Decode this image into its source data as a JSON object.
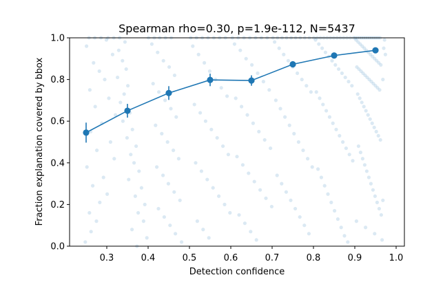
{
  "chart_data": {
    "type": "scatter",
    "title": "Spearman rho=0.30, p=1.9e-112, N=5437",
    "xlabel": "Detection confidence",
    "ylabel": "Fraction explanation covered by bbox",
    "xlim": [
      0.21,
      1.02
    ],
    "ylim": [
      0.0,
      1.0
    ],
    "x_ticks": [
      {
        "value": 0.3,
        "label": "0.3"
      },
      {
        "value": 0.4,
        "label": "0.4"
      },
      {
        "value": 0.5,
        "label": "0.5"
      },
      {
        "value": 0.6,
        "label": "0.6"
      },
      {
        "value": 0.7,
        "label": "0.7"
      },
      {
        "value": 0.8,
        "label": "0.8"
      },
      {
        "value": 0.9,
        "label": "0.9"
      },
      {
        "value": 1.0,
        "label": "1.0"
      }
    ],
    "y_ticks": [
      {
        "value": 0.0,
        "label": "0.0"
      },
      {
        "value": 0.2,
        "label": "0.2"
      },
      {
        "value": 0.4,
        "label": "0.4"
      },
      {
        "value": 0.6,
        "label": "0.6"
      },
      {
        "value": 0.8,
        "label": "0.8"
      },
      {
        "value": 1.0,
        "label": "1.0"
      }
    ],
    "grid": false,
    "colors": {
      "points": "#1f77b4",
      "binned_line": "#1f77b4"
    },
    "series": [
      {
        "kind": "binned_mean",
        "x": [
          0.25,
          0.35,
          0.45,
          0.55,
          0.65,
          0.75,
          0.85,
          0.95
        ],
        "y": [
          0.545,
          0.65,
          0.735,
          0.798,
          0.795,
          0.873,
          0.915,
          0.94
        ],
        "yerr": [
          0.048,
          0.033,
          0.033,
          0.03,
          0.025,
          0.015,
          0.012,
          0.01
        ]
      }
    ],
    "scatter_points": [
      [
        0.248,
        0.02
      ],
      [
        0.262,
        0.07
      ],
      [
        0.275,
        0.12
      ],
      [
        0.258,
        0.16
      ],
      [
        0.283,
        0.21
      ],
      [
        0.301,
        0.25
      ],
      [
        0.266,
        0.29
      ],
      [
        0.292,
        0.33
      ],
      [
        0.252,
        0.38
      ],
      [
        0.318,
        0.42
      ],
      [
        0.276,
        0.46
      ],
      [
        0.309,
        0.5
      ],
      [
        0.261,
        0.55
      ],
      [
        0.288,
        0.59
      ],
      [
        0.321,
        0.63
      ],
      [
        0.272,
        0.67
      ],
      [
        0.305,
        0.71
      ],
      [
        0.259,
        0.75
      ],
      [
        0.295,
        0.8
      ],
      [
        0.282,
        0.84
      ],
      [
        0.268,
        0.88
      ],
      [
        0.314,
        0.92
      ],
      [
        0.251,
        0.96
      ],
      [
        0.299,
        0.99
      ],
      [
        0.257,
        1.0
      ],
      [
        0.271,
        1.0
      ],
      [
        0.286,
        1.0
      ],
      [
        0.303,
        1.0
      ],
      [
        0.317,
        1.0
      ],
      [
        0.331,
        1.0
      ],
      [
        0.344,
        0.98
      ],
      [
        0.329,
        0.94
      ],
      [
        0.338,
        0.89
      ],
      [
        0.347,
        0.85
      ],
      [
        0.326,
        0.81
      ],
      [
        0.351,
        0.77
      ],
      [
        0.342,
        0.73
      ],
      [
        0.333,
        0.69
      ],
      [
        0.356,
        0.64
      ],
      [
        0.339,
        0.6
      ],
      [
        0.362,
        0.56
      ],
      [
        0.349,
        0.52
      ],
      [
        0.371,
        0.48
      ],
      [
        0.358,
        0.44
      ],
      [
        0.366,
        0.4
      ],
      [
        0.378,
        0.36
      ],
      [
        0.353,
        0.32
      ],
      [
        0.384,
        0.28
      ],
      [
        0.369,
        0.24
      ],
      [
        0.392,
        0.2
      ],
      [
        0.376,
        0.16
      ],
      [
        0.389,
        0.12
      ],
      [
        0.361,
        0.08
      ],
      [
        0.397,
        0.04
      ],
      [
        0.373,
        0.0
      ],
      [
        0.401,
        1.0
      ],
      [
        0.415,
        1.0
      ],
      [
        0.428,
        1.0
      ],
      [
        0.442,
        1.0
      ],
      [
        0.456,
        1.0
      ],
      [
        0.409,
        0.97
      ],
      [
        0.423,
        0.93
      ],
      [
        0.437,
        0.89
      ],
      [
        0.451,
        0.86
      ],
      [
        0.464,
        0.82
      ],
      [
        0.412,
        0.78
      ],
      [
        0.426,
        0.74
      ],
      [
        0.441,
        0.7
      ],
      [
        0.455,
        0.66
      ],
      [
        0.468,
        0.62
      ],
      [
        0.418,
        0.58
      ],
      [
        0.433,
        0.54
      ],
      [
        0.447,
        0.5
      ],
      [
        0.461,
        0.46
      ],
      [
        0.474,
        0.42
      ],
      [
        0.421,
        0.38
      ],
      [
        0.436,
        0.34
      ],
      [
        0.449,
        0.3
      ],
      [
        0.463,
        0.26
      ],
      [
        0.477,
        0.22
      ],
      [
        0.425,
        0.18
      ],
      [
        0.439,
        0.14
      ],
      [
        0.453,
        0.1
      ],
      [
        0.466,
        0.06
      ],
      [
        0.481,
        0.02
      ],
      [
        0.503,
        1.0
      ],
      [
        0.517,
        1.0
      ],
      [
        0.531,
        1.0
      ],
      [
        0.545,
        1.0
      ],
      [
        0.559,
        1.0
      ],
      [
        0.573,
        1.0
      ],
      [
        0.587,
        1.0
      ],
      [
        0.508,
        0.96
      ],
      [
        0.522,
        0.92
      ],
      [
        0.536,
        0.88
      ],
      [
        0.549,
        0.84
      ],
      [
        0.563,
        0.8
      ],
      [
        0.577,
        0.76
      ],
      [
        0.591,
        0.72
      ],
      [
        0.512,
        0.68
      ],
      [
        0.526,
        0.64
      ],
      [
        0.539,
        0.6
      ],
      [
        0.553,
        0.56
      ],
      [
        0.567,
        0.52
      ],
      [
        0.581,
        0.48
      ],
      [
        0.594,
        0.44
      ],
      [
        0.515,
        0.4
      ],
      [
        0.529,
        0.36
      ],
      [
        0.543,
        0.32
      ],
      [
        0.557,
        0.28
      ],
      [
        0.571,
        0.24
      ],
      [
        0.585,
        0.2
      ],
      [
        0.598,
        0.16
      ],
      [
        0.519,
        0.12
      ],
      [
        0.533,
        0.08
      ],
      [
        0.547,
        0.04
      ],
      [
        0.604,
        1.0
      ],
      [
        0.618,
        1.0
      ],
      [
        0.632,
        1.0
      ],
      [
        0.646,
        1.0
      ],
      [
        0.66,
        1.0
      ],
      [
        0.674,
        1.0
      ],
      [
        0.688,
        1.0
      ],
      [
        0.609,
        0.97
      ],
      [
        0.623,
        0.94
      ],
      [
        0.637,
        0.9
      ],
      [
        0.651,
        0.87
      ],
      [
        0.665,
        0.83
      ],
      [
        0.679,
        0.79
      ],
      [
        0.693,
        0.75
      ],
      [
        0.612,
        0.71
      ],
      [
        0.626,
        0.67
      ],
      [
        0.64,
        0.63
      ],
      [
        0.654,
        0.59
      ],
      [
        0.668,
        0.55
      ],
      [
        0.682,
        0.51
      ],
      [
        0.696,
        0.47
      ],
      [
        0.615,
        0.43
      ],
      [
        0.629,
        0.39
      ],
      [
        0.643,
        0.35
      ],
      [
        0.657,
        0.31
      ],
      [
        0.671,
        0.27
      ],
      [
        0.685,
        0.23
      ],
      [
        0.699,
        0.19
      ],
      [
        0.62,
        0.15
      ],
      [
        0.634,
        0.11
      ],
      [
        0.648,
        0.07
      ],
      [
        0.662,
        0.03
      ],
      [
        0.702,
        1.0
      ],
      [
        0.713,
        1.0
      ],
      [
        0.724,
        1.0
      ],
      [
        0.735,
        1.0
      ],
      [
        0.746,
        1.0
      ],
      [
        0.757,
        1.0
      ],
      [
        0.768,
        1.0
      ],
      [
        0.779,
        1.0
      ],
      [
        0.79,
        1.0
      ],
      [
        0.706,
        0.98
      ],
      [
        0.717,
        0.95
      ],
      [
        0.728,
        0.92
      ],
      [
        0.739,
        0.89
      ],
      [
        0.75,
        0.86
      ],
      [
        0.761,
        0.83
      ],
      [
        0.772,
        0.8
      ],
      [
        0.783,
        0.77
      ],
      [
        0.794,
        0.74
      ],
      [
        0.709,
        0.7
      ],
      [
        0.72,
        0.66
      ],
      [
        0.731,
        0.62
      ],
      [
        0.742,
        0.58
      ],
      [
        0.753,
        0.54
      ],
      [
        0.764,
        0.5
      ],
      [
        0.775,
        0.46
      ],
      [
        0.786,
        0.42
      ],
      [
        0.797,
        0.38
      ],
      [
        0.712,
        0.34
      ],
      [
        0.723,
        0.3
      ],
      [
        0.734,
        0.26
      ],
      [
        0.745,
        0.22
      ],
      [
        0.756,
        0.18
      ],
      [
        0.767,
        0.14
      ],
      [
        0.778,
        0.1
      ],
      [
        0.789,
        0.06
      ],
      [
        0.801,
        1.0
      ],
      [
        0.809,
        1.0
      ],
      [
        0.817,
        1.0
      ],
      [
        0.825,
        1.0
      ],
      [
        0.833,
        1.0
      ],
      [
        0.841,
        1.0
      ],
      [
        0.849,
        1.0
      ],
      [
        0.857,
        1.0
      ],
      [
        0.865,
        1.0
      ],
      [
        0.873,
        1.0
      ],
      [
        0.881,
        1.0
      ],
      [
        0.889,
        1.0
      ],
      [
        0.897,
        1.0
      ],
      [
        0.805,
        0.99
      ],
      [
        0.813,
        0.97
      ],
      [
        0.821,
        0.95
      ],
      [
        0.829,
        0.93
      ],
      [
        0.837,
        0.91
      ],
      [
        0.845,
        0.89
      ],
      [
        0.853,
        0.87
      ],
      [
        0.861,
        0.85
      ],
      [
        0.869,
        0.83
      ],
      [
        0.877,
        0.81
      ],
      [
        0.885,
        0.79
      ],
      [
        0.893,
        0.77
      ],
      [
        0.807,
        0.74
      ],
      [
        0.815,
        0.71
      ],
      [
        0.823,
        0.68
      ],
      [
        0.831,
        0.65
      ],
      [
        0.839,
        0.62
      ],
      [
        0.847,
        0.59
      ],
      [
        0.855,
        0.56
      ],
      [
        0.863,
        0.53
      ],
      [
        0.871,
        0.5
      ],
      [
        0.879,
        0.47
      ],
      [
        0.887,
        0.44
      ],
      [
        0.895,
        0.41
      ],
      [
        0.811,
        0.37
      ],
      [
        0.819,
        0.33
      ],
      [
        0.827,
        0.29
      ],
      [
        0.835,
        0.25
      ],
      [
        0.843,
        0.21
      ],
      [
        0.851,
        0.17
      ],
      [
        0.859,
        0.13
      ],
      [
        0.867,
        0.09
      ],
      [
        0.875,
        0.05
      ],
      [
        0.883,
        0.02
      ],
      [
        0.901,
        1.0
      ],
      [
        0.906,
        1.0
      ],
      [
        0.911,
        1.0
      ],
      [
        0.916,
        1.0
      ],
      [
        0.921,
        1.0
      ],
      [
        0.926,
        1.0
      ],
      [
        0.931,
        1.0
      ],
      [
        0.936,
        1.0
      ],
      [
        0.941,
        1.0
      ],
      [
        0.946,
        1.0
      ],
      [
        0.951,
        1.0
      ],
      [
        0.956,
        1.0
      ],
      [
        0.961,
        1.0
      ],
      [
        0.903,
        0.99
      ],
      [
        0.908,
        0.98
      ],
      [
        0.913,
        0.97
      ],
      [
        0.918,
        0.96
      ],
      [
        0.923,
        0.95
      ],
      [
        0.928,
        0.94
      ],
      [
        0.933,
        0.93
      ],
      [
        0.938,
        0.92
      ],
      [
        0.943,
        0.91
      ],
      [
        0.948,
        0.9
      ],
      [
        0.953,
        0.89
      ],
      [
        0.958,
        0.88
      ],
      [
        0.963,
        0.87
      ],
      [
        0.905,
        0.86
      ],
      [
        0.91,
        0.85
      ],
      [
        0.915,
        0.84
      ],
      [
        0.92,
        0.83
      ],
      [
        0.925,
        0.82
      ],
      [
        0.93,
        0.81
      ],
      [
        0.935,
        0.8
      ],
      [
        0.94,
        0.79
      ],
      [
        0.945,
        0.78
      ],
      [
        0.95,
        0.77
      ],
      [
        0.955,
        0.76
      ],
      [
        0.96,
        0.75
      ],
      [
        0.907,
        0.73
      ],
      [
        0.912,
        0.71
      ],
      [
        0.917,
        0.69
      ],
      [
        0.922,
        0.67
      ],
      [
        0.927,
        0.65
      ],
      [
        0.932,
        0.63
      ],
      [
        0.937,
        0.61
      ],
      [
        0.942,
        0.59
      ],
      [
        0.947,
        0.57
      ],
      [
        0.952,
        0.55
      ],
      [
        0.957,
        0.53
      ],
      [
        0.962,
        0.51
      ],
      [
        0.909,
        0.48
      ],
      [
        0.914,
        0.45
      ],
      [
        0.919,
        0.42
      ],
      [
        0.924,
        0.39
      ],
      [
        0.929,
        0.36
      ],
      [
        0.934,
        0.33
      ],
      [
        0.939,
        0.3
      ],
      [
        0.944,
        0.27
      ],
      [
        0.949,
        0.24
      ],
      [
        0.954,
        0.21
      ],
      [
        0.959,
        0.18
      ],
      [
        0.964,
        0.15
      ],
      [
        0.904,
        0.12
      ],
      [
        0.926,
        0.09
      ],
      [
        0.948,
        0.06
      ],
      [
        0.966,
        0.03
      ],
      [
        0.968,
        0.22
      ],
      [
        0.97,
        0.95
      ],
      [
        0.972,
        0.99
      ],
      [
        0.974,
        0.92
      ],
      [
        0.968,
        0.8
      ]
    ]
  }
}
